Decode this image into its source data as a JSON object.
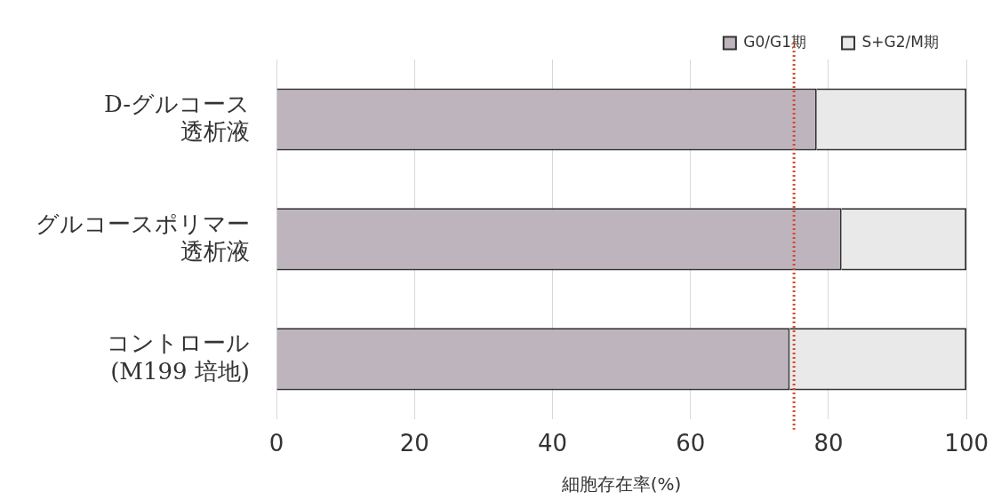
{
  "chart_data": {
    "type": "bar",
    "orientation": "horizontal",
    "stacked": true,
    "categories": [
      "D-グルコース透析液",
      "グルコースポリマー透析液",
      "コントロール(M199 培地)"
    ],
    "series": [
      {
        "name": "G0/G1期",
        "color": "#bdb4bd",
        "values": [
          78.3,
          81.9,
          74.4
        ]
      },
      {
        "name": "S+G2/M期",
        "color": "#e9e9e9",
        "values": [
          21.7,
          18.1,
          25.6
        ]
      }
    ],
    "xlim": [
      0,
      100
    ],
    "xticks": [
      0,
      20,
      40,
      60,
      80,
      100
    ],
    "xlabel": "細胞存在率(%)",
    "ref_lines": [
      {
        "axis": "x",
        "value": 75,
        "color": "#d9472b",
        "line_style": "dotted"
      }
    ],
    "grid": "x",
    "legend": "top right"
  }
}
